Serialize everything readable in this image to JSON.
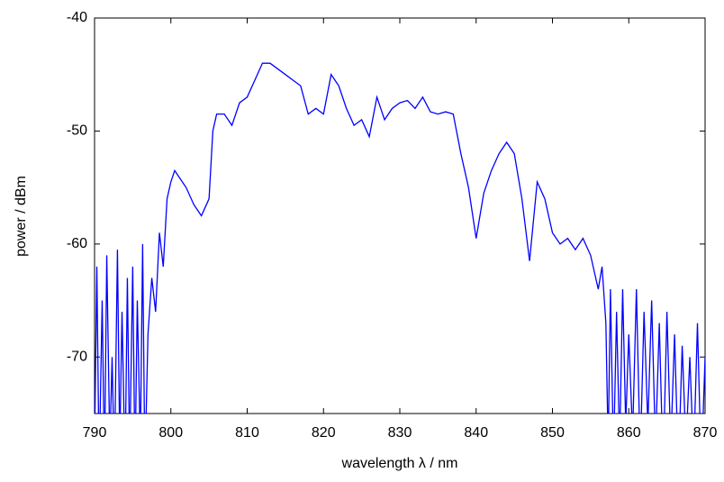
{
  "chart_data": {
    "type": "line",
    "x_label": "wavelength λ / nm",
    "y_label": "power / dBm",
    "color": "#0000ff",
    "xlim": [
      790,
      870
    ],
    "xticks": [
      790,
      800,
      810,
      820,
      830,
      840,
      850,
      860,
      870
    ],
    "ylim": [
      -75,
      -40
    ],
    "yticks": [
      -40,
      -50,
      -60,
      -70
    ],
    "x": [
      790,
      790.3,
      790.6,
      791,
      791.3,
      791.6,
      792,
      792.3,
      792.6,
      793,
      793.3,
      793.6,
      794,
      794.3,
      794.6,
      795,
      795.3,
      795.6,
      796,
      796.3,
      796.6,
      797,
      797.5,
      798,
      798.5,
      799,
      799.5,
      800,
      800.5,
      801,
      802,
      803,
      804,
      805,
      805.5,
      806,
      807,
      808,
      809,
      810,
      811,
      812,
      813,
      814,
      815,
      816,
      817,
      818,
      819,
      820,
      821,
      822,
      823,
      824,
      825,
      826,
      827,
      828,
      829,
      830,
      831,
      832,
      833,
      834,
      835,
      836,
      837,
      838,
      839,
      840,
      841,
      842,
      843,
      844,
      845,
      846,
      847,
      848,
      849,
      850,
      851,
      852,
      853,
      854,
      855,
      856,
      856.5,
      857,
      857.3,
      857.6,
      858,
      858.4,
      858.8,
      859.2,
      859.6,
      860,
      860.5,
      861,
      861.5,
      862,
      862.5,
      863,
      863.5,
      864,
      864.5,
      865,
      865.5,
      866,
      866.5,
      867,
      867.5,
      868,
      868.5,
      869,
      869.5,
      870
    ],
    "values": [
      -78,
      -62,
      -80,
      -65,
      -80,
      -61,
      -78,
      -70,
      -80,
      -60.5,
      -78,
      -66,
      -80,
      -63,
      -79,
      -62,
      -80,
      -65,
      -78,
      -60,
      -80,
      -68,
      -63,
      -66,
      -59,
      -62,
      -56,
      -54.5,
      -53.5,
      -54,
      -55,
      -56.5,
      -57.5,
      -56,
      -50,
      -48.5,
      -48.5,
      -49.5,
      -47.5,
      -47,
      -45.5,
      -44,
      -44,
      -44.5,
      -45,
      -45.5,
      -46,
      -48.5,
      -48,
      -48.5,
      -45,
      -46,
      -48,
      -49.5,
      -49,
      -50.5,
      -47,
      -49,
      -48,
      -47.5,
      -47.3,
      -48,
      -47,
      -48.3,
      -48.5,
      -48.3,
      -48.5,
      -52,
      -55,
      -59.5,
      -55.5,
      -53.5,
      -52,
      -51,
      -52,
      -56,
      -61.5,
      -54.5,
      -56,
      -59,
      -60,
      -59.5,
      -60.5,
      -59.5,
      -61,
      -64,
      -62,
      -67,
      -78,
      -64,
      -79,
      -66,
      -78,
      -64,
      -76,
      -68,
      -77,
      -64,
      -79,
      -66,
      -76,
      -65,
      -78,
      -67,
      -80,
      -66,
      -78,
      -68,
      -80,
      -69,
      -78,
      -70,
      -79,
      -67,
      -80,
      -70
    ]
  }
}
